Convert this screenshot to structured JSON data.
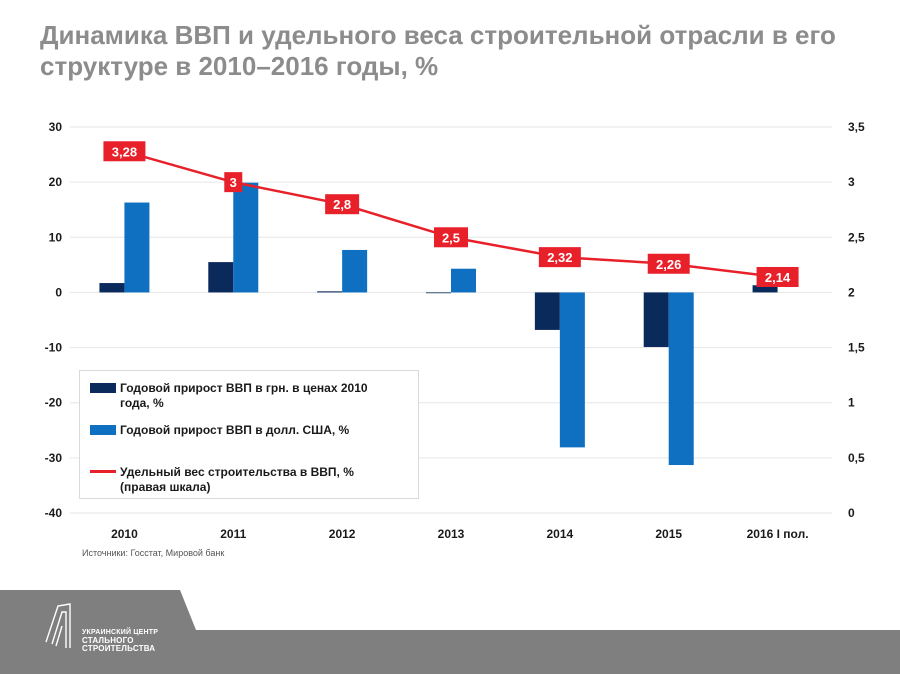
{
  "header": {
    "title": "Динамика ВВП и удельного веса строительной отрасли в его структуре в 2010–2016 годы, %"
  },
  "chart_data": {
    "type": "bar",
    "categories": [
      "2010",
      "2011",
      "2012",
      "2013",
      "2014",
      "2015",
      "2016 I пол."
    ],
    "series": [
      {
        "name": "Годовой прирост  ВВП в грн. в ценах 2010 года, %",
        "type": "bar",
        "axis": "left",
        "color": "#0b2a5c",
        "values": [
          1.7,
          5.5,
          0.2,
          0.0,
          -6.8,
          -9.9,
          1.3
        ]
      },
      {
        "name": "Годовой прирост ВВП в долл. США, %",
        "type": "bar",
        "axis": "left",
        "color": "#0f6fc1",
        "values": [
          16.3,
          19.9,
          7.7,
          4.3,
          -28.1,
          -31.3,
          null
        ]
      },
      {
        "name": "Удельный вес строительства в ВВП, % (правая шкала)",
        "type": "line",
        "axis": "right",
        "color": "#e8202a",
        "values": [
          3.28,
          3.0,
          2.8,
          2.5,
          2.32,
          2.26,
          2.14
        ],
        "labels": [
          "3,28",
          "3",
          "2,8",
          "2,5",
          "2,32",
          "2,26",
          "2,14"
        ]
      }
    ],
    "y_left": {
      "ylim": [
        -40,
        30
      ],
      "ticks": [
        "30",
        "20",
        "10",
        "0",
        "-10",
        "-20",
        "-30",
        "-40"
      ]
    },
    "y_right": {
      "ylim": [
        0,
        3.5
      ],
      "ticks": [
        "3,5",
        "3",
        "2,5",
        "2",
        "1,5",
        "1",
        "0,5",
        "0"
      ]
    },
    "grid": true,
    "legend": "bottom-left"
  },
  "legend": {
    "items": [
      {
        "label": "Годовой прирост  ВВП в грн. в ценах 2010 года, %"
      },
      {
        "label": "Годовой прирост ВВП в долл. США, %"
      },
      {
        "label": "Удельный вес строительства в ВВП, % (правая шкала)"
      }
    ]
  },
  "source": "Источники: Госстат, Мировой банк",
  "footer": {
    "logo_line1": "УКРАИНСКИЙ ЦЕНТР",
    "logo_line2": "СТАЛЬНОГО",
    "logo_line3": "СТРОИТЕЛЬСТВА"
  },
  "colors": {
    "dark_bar": "#0b2a5c",
    "blue_bar": "#0f6fc1",
    "line": "#e8202a",
    "footer": "#7f7f7f",
    "title": "#8c8c8c"
  }
}
